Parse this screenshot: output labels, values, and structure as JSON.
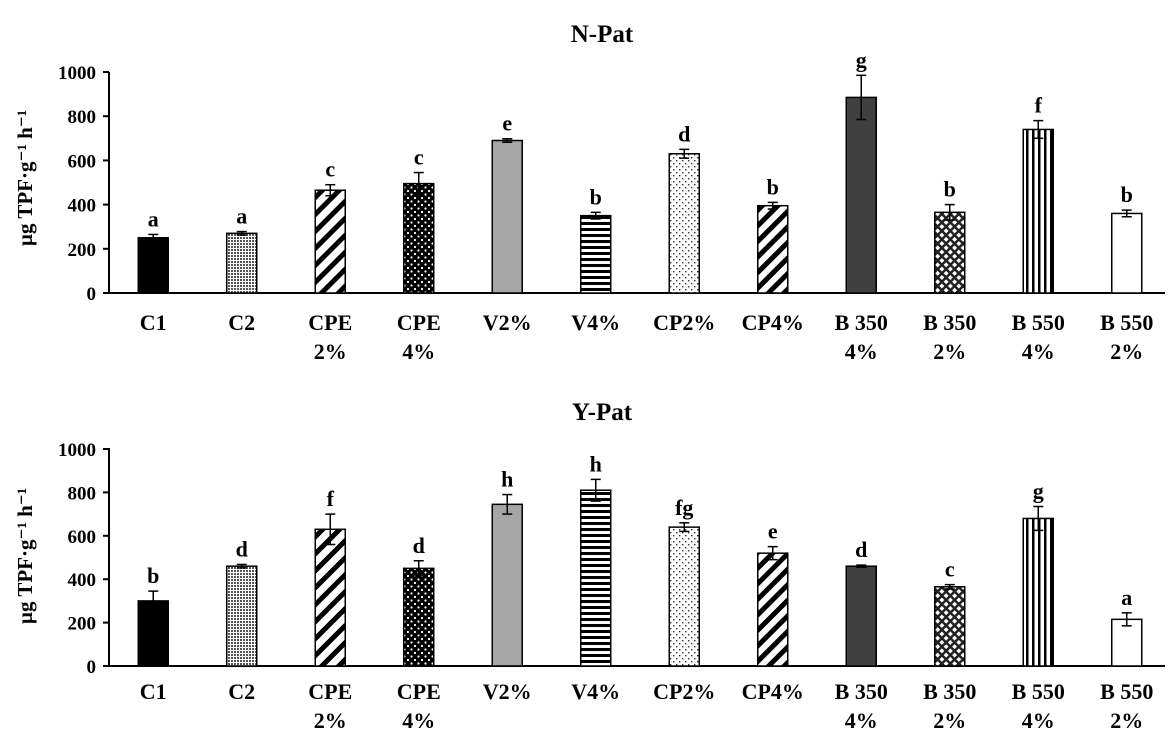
{
  "chart_data": [
    {
      "type": "bar",
      "title": "N-Pat",
      "ylabel": "µg TPF·g⁻¹ h⁻¹",
      "xlabel": "",
      "ylim": [
        0,
        1000
      ],
      "yticks": [
        0,
        200,
        400,
        600,
        800,
        1000
      ],
      "categories": [
        [
          "C1"
        ],
        [
          "C2"
        ],
        [
          "CPE",
          "2%"
        ],
        [
          "CPE",
          "4%"
        ],
        [
          "V2%"
        ],
        [
          "V4%"
        ],
        [
          "CP2%"
        ],
        [
          "CP4%"
        ],
        [
          "B 350",
          "4%"
        ],
        [
          "B 350",
          "2%"
        ],
        [
          "B 550",
          "4%"
        ],
        [
          "B 550",
          "2%"
        ]
      ],
      "values": [
        250,
        270,
        465,
        495,
        690,
        350,
        630,
        395,
        885,
        365,
        740,
        360
      ],
      "errors": [
        15,
        8,
        25,
        50,
        8,
        15,
        20,
        15,
        100,
        35,
        40,
        15
      ],
      "letters": [
        "a",
        "a",
        "c",
        "c",
        "e",
        "b",
        "d",
        "b",
        "g",
        "b",
        "f",
        "b"
      ],
      "patterns": [
        "black",
        "fine-dots",
        "diag-wide",
        "black-dots",
        "gray",
        "horiz",
        "sparse-dots",
        "diag-bold",
        "dark-gray",
        "crosshatch",
        "vert",
        "white"
      ]
    },
    {
      "type": "bar",
      "title": "Y-Pat",
      "ylabel": "µg TPF·g⁻¹ h⁻¹",
      "xlabel": "",
      "ylim": [
        0,
        1000
      ],
      "yticks": [
        0,
        200,
        400,
        600,
        800,
        1000
      ],
      "categories": [
        [
          "C1"
        ],
        [
          "C2"
        ],
        [
          "CPE",
          "2%"
        ],
        [
          "CPE",
          "4%"
        ],
        [
          "V2%"
        ],
        [
          "V4%"
        ],
        [
          "CP2%"
        ],
        [
          "CP4%"
        ],
        [
          "B 350",
          "4%"
        ],
        [
          "B 350",
          "2%"
        ],
        [
          "B 550",
          "4%"
        ],
        [
          "B 550",
          "2%"
        ]
      ],
      "values": [
        300,
        460,
        630,
        450,
        745,
        810,
        640,
        520,
        460,
        365,
        680,
        215
      ],
      "errors": [
        45,
        8,
        70,
        35,
        45,
        50,
        20,
        30,
        5,
        10,
        55,
        30
      ],
      "letters": [
        "b",
        "d",
        "f",
        "d",
        "h",
        "h",
        "fg",
        "e",
        "d",
        "c",
        "g",
        "a"
      ],
      "patterns": [
        "black",
        "fine-dots",
        "diag-wide",
        "black-dots",
        "gray",
        "horiz",
        "sparse-dots",
        "diag-bold",
        "dark-gray",
        "crosshatch",
        "vert",
        "white"
      ]
    }
  ]
}
